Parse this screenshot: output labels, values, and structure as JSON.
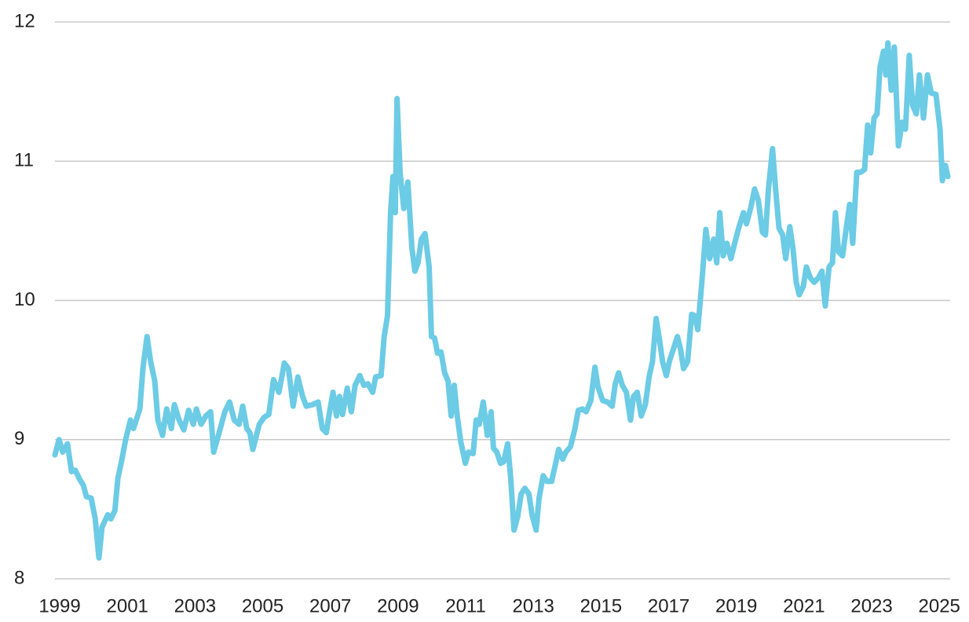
{
  "chart_data": {
    "type": "line",
    "x": [
      1998.86,
      1998.98,
      1999.09,
      1999.23,
      1999.35,
      1999.46,
      1999.58,
      1999.7,
      1999.79,
      1999.93,
      2000.05,
      2000.16,
      2000.25,
      2000.42,
      2000.51,
      2000.63,
      2000.72,
      2000.84,
      2000.95,
      2001.09,
      2001.18,
      2001.37,
      2001.46,
      2001.58,
      2001.69,
      2001.81,
      2001.9,
      2002.04,
      2002.16,
      2002.3,
      2002.39,
      2002.53,
      2002.67,
      2002.81,
      2002.95,
      2003.04,
      2003.18,
      2003.32,
      2003.46,
      2003.55,
      2003.69,
      2003.88,
      2004.02,
      2004.16,
      2004.3,
      2004.41,
      2004.53,
      2004.62,
      2004.71,
      2004.9,
      2005.04,
      2005.18,
      2005.32,
      2005.48,
      2005.64,
      2005.76,
      2005.9,
      2006.04,
      2006.18,
      2006.29,
      2006.46,
      2006.64,
      2006.76,
      2006.88,
      2006.99,
      2007.08,
      2007.18,
      2007.27,
      2007.36,
      2007.5,
      2007.62,
      2007.73,
      2007.87,
      2007.99,
      2008.11,
      2008.25,
      2008.34,
      2008.5,
      2008.59,
      2008.69,
      2008.78,
      2008.85,
      2008.92,
      2008.97,
      2009.06,
      2009.17,
      2009.29,
      2009.41,
      2009.5,
      2009.59,
      2009.69,
      2009.8,
      2009.92,
      2009.99,
      2010.08,
      2010.17,
      2010.27,
      2010.38,
      2010.48,
      2010.57,
      2010.66,
      2010.75,
      2010.85,
      2010.99,
      2011.08,
      2011.22,
      2011.31,
      2011.4,
      2011.52,
      2011.64,
      2011.75,
      2011.82,
      2011.92,
      2012.03,
      2012.12,
      2012.24,
      2012.33,
      2012.43,
      2012.54,
      2012.64,
      2012.75,
      2012.87,
      2012.96,
      2013.08,
      2013.17,
      2013.29,
      2013.4,
      2013.54,
      2013.66,
      2013.75,
      2013.87,
      2013.96,
      2014.1,
      2014.22,
      2014.33,
      2014.45,
      2014.56,
      2014.7,
      2014.82,
      2014.91,
      2015.05,
      2015.19,
      2015.33,
      2015.42,
      2015.52,
      2015.63,
      2015.75,
      2015.87,
      2015.96,
      2016.07,
      2016.19,
      2016.31,
      2016.42,
      2016.52,
      2016.63,
      2016.72,
      2016.82,
      2016.93,
      2017.03,
      2017.14,
      2017.26,
      2017.35,
      2017.44,
      2017.56,
      2017.68,
      2017.77,
      2017.86,
      2017.98,
      2018.1,
      2018.21,
      2018.33,
      2018.42,
      2018.51,
      2018.61,
      2018.72,
      2018.84,
      2018.95,
      2019.07,
      2019.21,
      2019.3,
      2019.42,
      2019.54,
      2019.65,
      2019.77,
      2019.86,
      2019.95,
      2020.07,
      2020.16,
      2020.26,
      2020.37,
      2020.46,
      2020.58,
      2020.67,
      2020.77,
      2020.86,
      2020.98,
      2021.07,
      2021.19,
      2021.3,
      2021.42,
      2021.53,
      2021.63,
      2021.74,
      2021.84,
      2021.93,
      2022.02,
      2022.14,
      2022.25,
      2022.35,
      2022.44,
      2022.56,
      2022.67,
      2022.79,
      2022.88,
      2022.97,
      2023.07,
      2023.16,
      2023.25,
      2023.35,
      2023.42,
      2023.48,
      2023.58,
      2023.67,
      2023.79,
      2023.9,
      2024.0,
      2024.11,
      2024.21,
      2024.32,
      2024.41,
      2024.53,
      2024.65,
      2024.76,
      2024.9,
      2025.02,
      2025.09,
      2025.18,
      2025.25
    ],
    "series": [
      {
        "color": "#6ccbe5",
        "values": [
          8.89,
          9.0,
          8.91,
          8.97,
          8.77,
          8.78,
          8.72,
          8.67,
          8.59,
          8.58,
          8.43,
          8.15,
          8.37,
          8.46,
          8.43,
          8.49,
          8.72,
          8.86,
          9.0,
          9.14,
          9.08,
          9.22,
          9.51,
          9.74,
          9.56,
          9.42,
          9.14,
          9.03,
          9.22,
          9.08,
          9.25,
          9.14,
          9.07,
          9.21,
          9.11,
          9.22,
          9.11,
          9.17,
          9.2,
          8.91,
          9.03,
          9.2,
          9.27,
          9.14,
          9.11,
          9.24,
          9.08,
          9.05,
          8.93,
          9.11,
          9.16,
          9.18,
          9.43,
          9.34,
          9.55,
          9.51,
          9.24,
          9.45,
          9.31,
          9.24,
          9.25,
          9.27,
          9.08,
          9.05,
          9.22,
          9.34,
          9.17,
          9.31,
          9.18,
          9.37,
          9.2,
          9.39,
          9.46,
          9.39,
          9.4,
          9.34,
          9.45,
          9.46,
          9.74,
          9.89,
          10.63,
          10.89,
          10.63,
          11.45,
          10.92,
          10.66,
          10.85,
          10.38,
          10.21,
          10.27,
          10.44,
          10.48,
          10.24,
          9.74,
          9.73,
          9.62,
          9.63,
          9.48,
          9.42,
          9.17,
          9.39,
          9.17,
          8.99,
          8.83,
          8.91,
          8.9,
          9.14,
          9.11,
          9.27,
          9.03,
          9.2,
          8.94,
          8.91,
          8.83,
          8.84,
          8.97,
          8.73,
          8.35,
          8.45,
          8.61,
          8.65,
          8.61,
          8.46,
          8.35,
          8.58,
          8.74,
          8.7,
          8.7,
          8.83,
          8.93,
          8.86,
          8.91,
          8.95,
          9.07,
          9.21,
          9.22,
          9.2,
          9.28,
          9.52,
          9.38,
          9.28,
          9.27,
          9.24,
          9.4,
          9.48,
          9.39,
          9.34,
          9.14,
          9.31,
          9.34,
          9.17,
          9.25,
          9.45,
          9.56,
          9.87,
          9.73,
          9.56,
          9.46,
          9.57,
          9.65,
          9.74,
          9.65,
          9.51,
          9.56,
          9.9,
          9.89,
          9.79,
          10.13,
          10.51,
          10.3,
          10.44,
          10.27,
          10.63,
          10.32,
          10.41,
          10.3,
          10.41,
          10.52,
          10.63,
          10.55,
          10.66,
          10.8,
          10.72,
          10.49,
          10.47,
          10.8,
          11.09,
          10.8,
          10.52,
          10.47,
          10.3,
          10.53,
          10.38,
          10.13,
          10.04,
          10.1,
          10.24,
          10.16,
          10.13,
          10.16,
          10.21,
          9.96,
          10.24,
          10.27,
          10.63,
          10.35,
          10.32,
          10.52,
          10.69,
          10.41,
          10.92,
          10.92,
          10.94,
          11.26,
          11.06,
          11.31,
          11.34,
          11.68,
          11.79,
          11.62,
          11.85,
          11.51,
          11.82,
          11.11,
          11.28,
          11.23,
          11.76,
          11.4,
          11.34,
          11.62,
          11.31,
          11.62,
          11.49,
          11.48,
          11.23,
          10.86,
          10.97,
          10.89
        ]
      }
    ],
    "xlim": [
      1998.86,
      2025.32
    ],
    "ylim": [
      8,
      12
    ],
    "xticks": [
      1999,
      2001,
      2003,
      2005,
      2007,
      2009,
      2011,
      2013,
      2015,
      2017,
      2019,
      2021,
      2023,
      2025
    ],
    "yticks": [
      8,
      9,
      10,
      11,
      12
    ],
    "grid": true
  }
}
